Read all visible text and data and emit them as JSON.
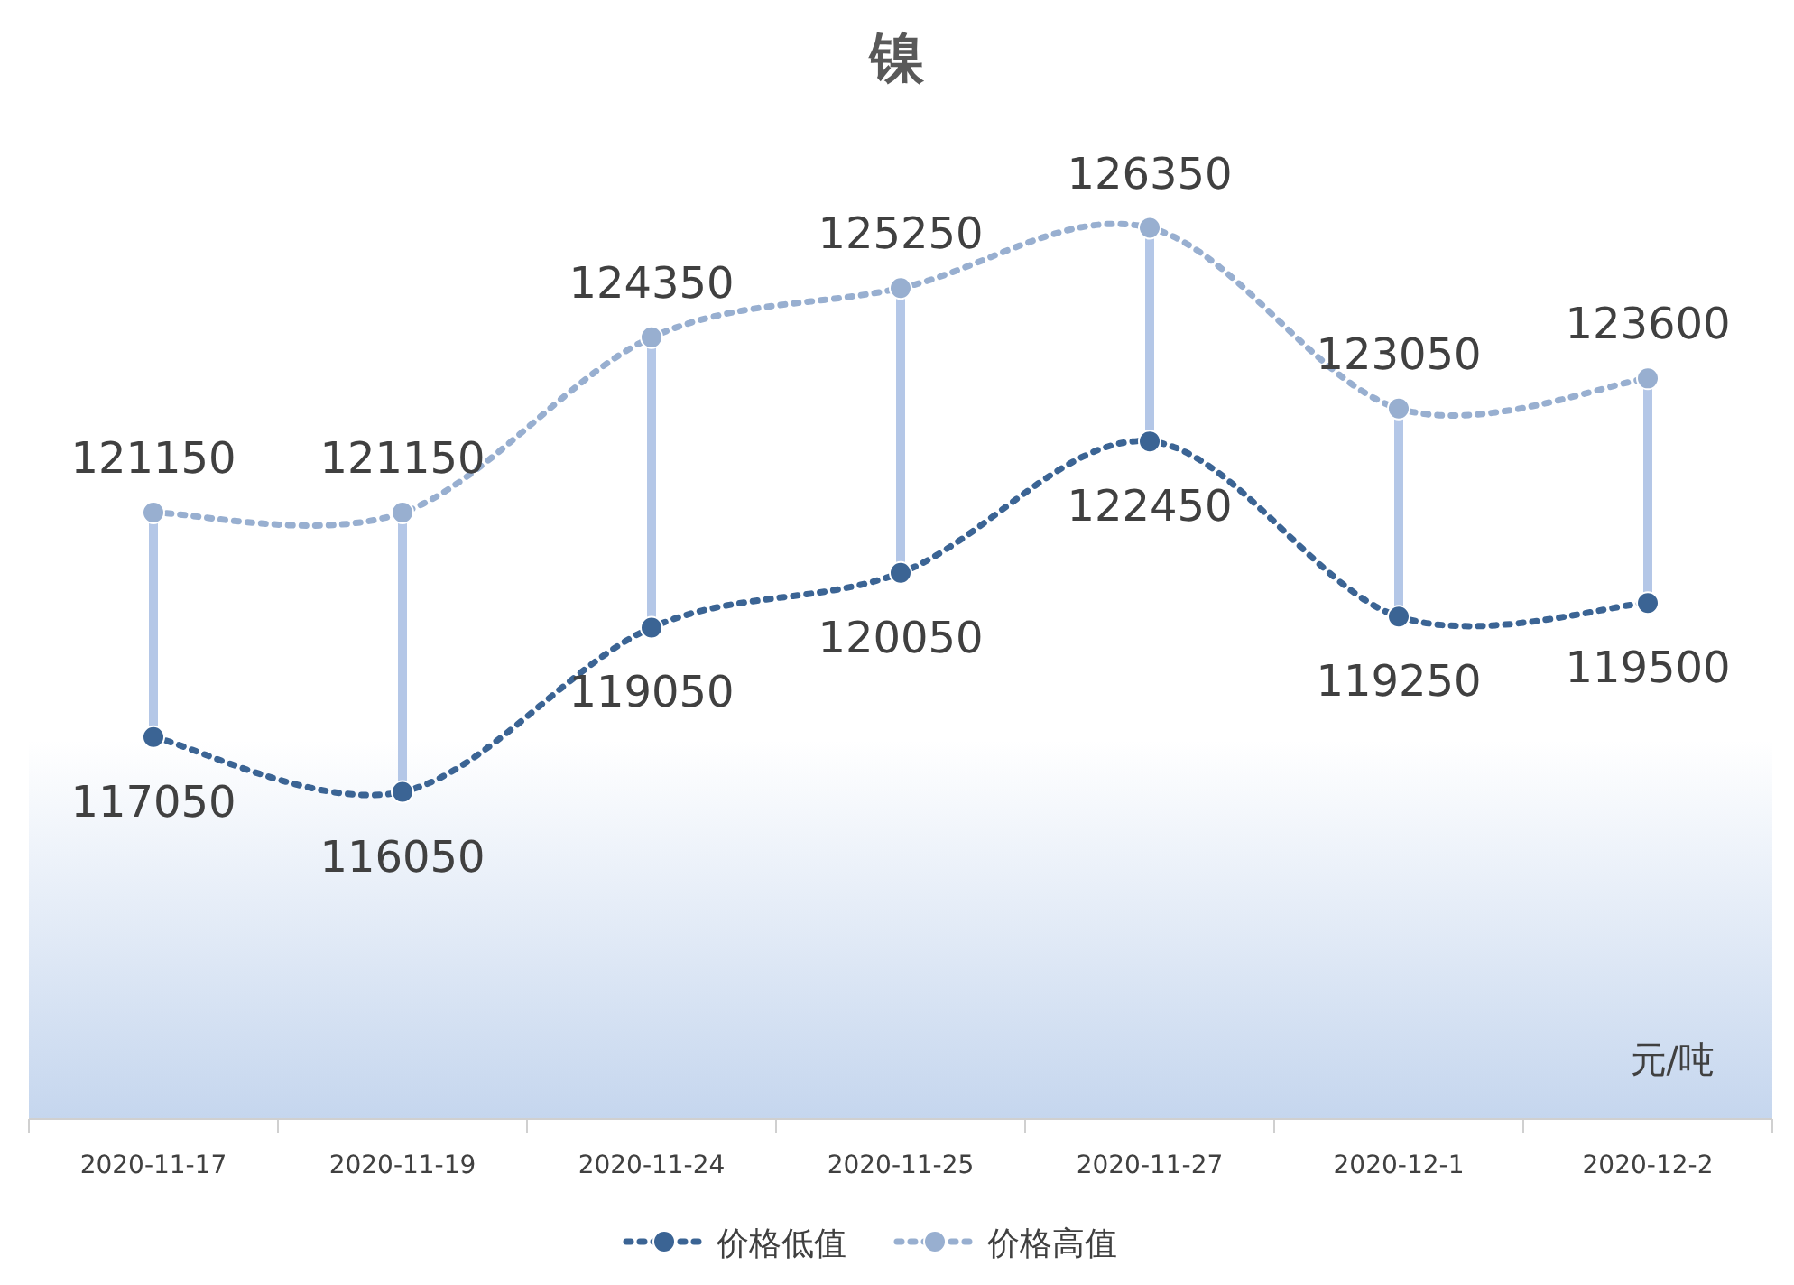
{
  "chart_data": {
    "type": "line",
    "title": "镍",
    "categories": [
      "2020-11-17",
      "2020-11-19",
      "2020-11-24",
      "2020-11-25",
      "2020-11-27",
      "2020-12-1",
      "2020-12-2"
    ],
    "series": [
      {
        "name": "价格低值",
        "color": "#3b6494",
        "values": [
          117050,
          116050,
          119050,
          120050,
          122450,
          119250,
          119500
        ]
      },
      {
        "name": "价格高值",
        "color": "#98afd0",
        "values": [
          121150,
          121150,
          124350,
          125250,
          126350,
          123050,
          123600
        ]
      }
    ],
    "data_labels": true,
    "marker": "circle",
    "line_style": "dotted",
    "legend": "bottom",
    "grid": false,
    "tick_labels": "x",
    "annotations": [
      "元/吨"
    ]
  }
}
